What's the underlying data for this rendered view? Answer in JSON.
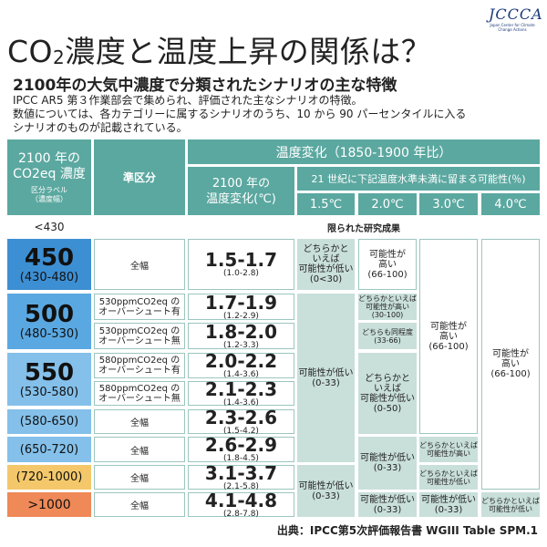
{
  "header": {
    "title_pre": "CO",
    "title_sub": "2",
    "title_post": "濃度と温度上昇の関係は？",
    "logo_text": "JCCCA",
    "logo_sub": "Japan Center for Climate Change Actions"
  },
  "subtitle": "2100年の大気中濃度で分類されたシナリオの主な特徴",
  "description": [
    "IPCC AR5 第３作業部会で集められ、評価された主なシナリオの特徴。",
    "数値については、各カテゴリーに属するシナリオのうち、10 から 90 パーセンタイルに入る",
    "シナリオのものが記載されている。"
  ],
  "table": {
    "h_conc_line1": "2100 年の",
    "h_conc_line2": "CO2eq 濃度",
    "h_conc_label1": "区分ラベル",
    "h_conc_label2": "（濃度幅）",
    "h_subcat": "準区分",
    "h_temp": "温度変化（1850-1900 年比）",
    "h_change1": "2100 年の",
    "h_change2": "温度変化(℃)",
    "h_prob": "21 世紀に下記温度水準未満に留まる可能性(％)",
    "h_15": "1.5℃",
    "h_20": "2.0℃",
    "h_30": "3.0℃",
    "h_40": "4.0℃",
    "row430_label": "<430",
    "row430_text": "限られた研究成果",
    "cat450": "450",
    "cat450_range": "(430-480)",
    "cat500": "500",
    "cat500_range": "(480-530)",
    "cat550": "550",
    "cat550_range": "(530-580)",
    "cat580": "(580-650)",
    "cat650": "(650-720)",
    "cat720": "(720-1000)",
    "cat1000": ">1000",
    "sub_all": "全幅",
    "sub_530a_1": "530ppmCO2eq の",
    "sub_530a_2": "オーバーシュート有",
    "sub_530b_1": "530ppmCO2eq の",
    "sub_530b_2": "オーバーシュート無",
    "sub_580a_1": "580ppmCO2eq の",
    "sub_580a_2": "オーバーシュート有",
    "sub_580b_1": "580ppmCO2eq の",
    "sub_580b_2": "オーバーシュート無",
    "t1": "1.5-1.7",
    "t1r": "(1.0-2.8)",
    "t2": "1.7-1.9",
    "t2r": "(1.2-2.9)",
    "t3": "1.8-2.0",
    "t3r": "(1.2-3.3)",
    "t4": "2.0-2.2",
    "t4r": "(1.4-3.6)",
    "t5": "2.1-2.3",
    "t5r": "(1.4-3.6)",
    "t6": "2.3-2.6",
    "t6r": "(1.5-4.2)",
    "t7": "2.6-2.9",
    "t7r": "(1.8-4.5)",
    "t8": "3.1-3.7",
    "t8r": "(2.1-5.8)",
    "t9": "4.1-4.8",
    "t9r": "(2.8-7.8)",
    "p15_a_1": "どちらかと",
    "p15_a_2": "いえば",
    "p15_a_3": "可能性が低い",
    "p15_a_4": "(0<30)",
    "p20_a_1": "可能性が",
    "p20_a_2": "高い",
    "p20_a_3": "(66-100)",
    "p15_b_1": "可能性が低い",
    "p15_b_2": "(0-33)",
    "p20_b_1": "どちらかといえば",
    "p20_b_2": "可能性が高い",
    "p20_b_3": "(30-100)",
    "p20_c_1": "どちらも同程度",
    "p20_c_2": "(33-66)",
    "p20_d_1": "どちらかと",
    "p20_d_2": "いえば",
    "p20_d_3": "可能性が低い",
    "p20_d_4": "(0-50)",
    "p30_a_1": "可能性が",
    "p30_a_2": "高い",
    "p30_a_3": "(66-100)",
    "p40_a_1": "可能性が",
    "p40_a_2": "高い",
    "p40_a_3": "(66-100)",
    "p20_e_1": "可能性が低い",
    "p20_e_2": "(0-33)",
    "p30_b_1": "どちらかといえば",
    "p30_b_2": "可能性が高い",
    "p30_c_1": "どちらかといえば",
    "p30_c_2": "可能性が低い",
    "p15_c_1": "可能性が低い",
    "p15_c_2": "(0-33)",
    "p20_f_1": "可能性が低い",
    "p20_f_2": "(0-33)",
    "p30_d_1": "可能性が低い",
    "p30_d_2": "(0-33)",
    "p40_b_1": "どちらかといえば",
    "p40_b_2": "可能性が低い"
  },
  "source": "出典：IPCC第5次評価報告書 WGIII Table SPM.1"
}
